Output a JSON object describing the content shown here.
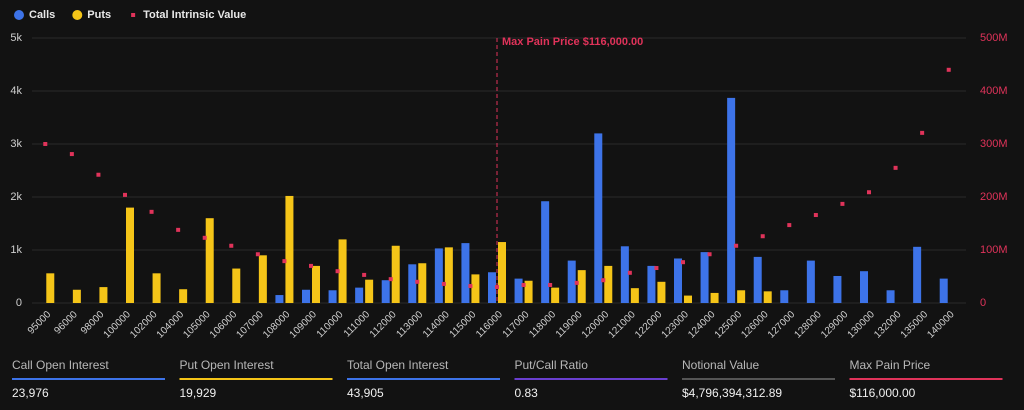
{
  "chart_data": {
    "type": "bar",
    "categories": [
      "95000",
      "96000",
      "98000",
      "100000",
      "102000",
      "104000",
      "105000",
      "106000",
      "107000",
      "108000",
      "109000",
      "110000",
      "111000",
      "112000",
      "113000",
      "114000",
      "115000",
      "116000",
      "117000",
      "118000",
      "119000",
      "120000",
      "121000",
      "122000",
      "123000",
      "124000",
      "125000",
      "126000",
      "127000",
      "128000",
      "129000",
      "130000",
      "132000",
      "135000",
      "140000"
    ],
    "series": [
      {
        "name": "Calls",
        "color": "#3d73e8",
        "values": [
          0,
          0,
          0,
          0,
          0,
          0,
          0,
          0,
          0,
          150,
          250,
          240,
          290,
          430,
          730,
          1030,
          1130,
          580,
          460,
          1920,
          800,
          3200,
          1070,
          700,
          840,
          960,
          3870,
          870,
          240,
          800,
          510,
          600,
          240,
          1060,
          460
        ]
      },
      {
        "name": "Puts",
        "color": "#f5c518",
        "values": [
          560,
          250,
          300,
          1800,
          560,
          260,
          1600,
          650,
          900,
          2020,
          700,
          1200,
          440,
          1080,
          750,
          1050,
          540,
          1150,
          420,
          290,
          620,
          700,
          280,
          400,
          140,
          190,
          240,
          220,
          0,
          0,
          0,
          0,
          0,
          0,
          0
        ]
      },
      {
        "name": "Total Intrinsic Value",
        "type": "scatter",
        "axis": "y2",
        "color": "#e0335a",
        "values": [
          300000000,
          281000000,
          242000000,
          204000000,
          172000000,
          138000000,
          123000000,
          108000000,
          92000000,
          79000000,
          70000000,
          60000000,
          53000000,
          45000000,
          40000000,
          36000000,
          32000000,
          30000000,
          34000000,
          34000000,
          38000000,
          43000000,
          57000000,
          66000000,
          77000000,
          92000000,
          108000000,
          126000000,
          147000000,
          166000000,
          187000000,
          209000000,
          255000000,
          321000000,
          440000000
        ]
      }
    ],
    "ylim": [
      0,
      5000
    ],
    "yticks": [
      0,
      {
        "value": 1000,
        "label": "1k"
      },
      {
        "value": 2000,
        "label": "2k"
      },
      {
        "value": 3000,
        "label": "3k"
      },
      {
        "value": 4000,
        "label": "4k"
      },
      {
        "value": 5000,
        "label": "5k"
      }
    ],
    "y2lim": [
      0,
      500000000
    ],
    "y2ticks": [
      0,
      {
        "value": 100000000,
        "label": "100M"
      },
      {
        "value": 200000000,
        "label": "200M"
      },
      {
        "value": 300000000,
        "label": "300M"
      },
      {
        "value": 400000000,
        "label": "400M"
      },
      {
        "value": 500000000,
        "label": "500M"
      }
    ],
    "grid": true,
    "max_pain": {
      "label": "Max Pain Price $116,000.00",
      "category": "116000",
      "color": "#e0335a"
    }
  },
  "stats": [
    {
      "label": "Call Open Interest",
      "value": "23,976",
      "color": "#3d73e8"
    },
    {
      "label": "Put Open Interest",
      "value": "19,929",
      "color": "#f5c518"
    },
    {
      "label": "Total Open Interest",
      "value": "43,905",
      "color": "#3d73e8"
    },
    {
      "label": "Put/Call Ratio",
      "value": "0.83",
      "color": "#6a3fd0"
    },
    {
      "label": "Notional Value",
      "value": "$4,796,394,312.89",
      "color": "#555555"
    },
    {
      "label": "Max Pain Price",
      "value": "$116,000.00",
      "color": "#e0335a"
    }
  ]
}
